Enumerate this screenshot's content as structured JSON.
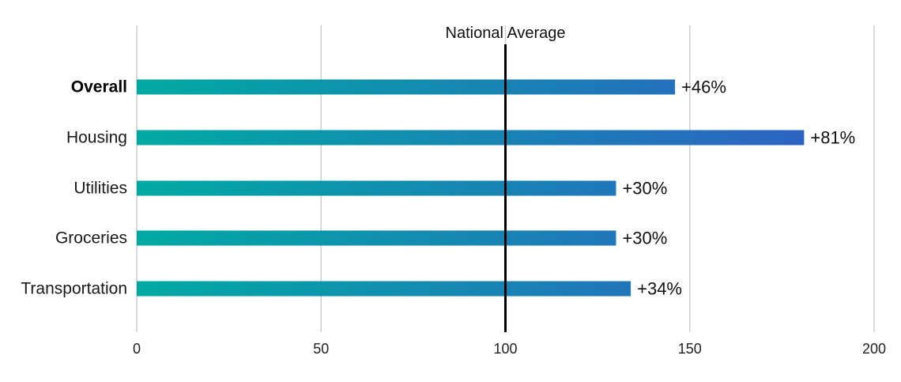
{
  "chart_data": {
    "type": "bar",
    "orientation": "horizontal",
    "categories": [
      "Overall",
      "Housing",
      "Utilities",
      "Groceries",
      "Transportation"
    ],
    "bold_categories": [
      "Overall"
    ],
    "values": [
      146,
      181,
      130,
      130,
      134
    ],
    "value_labels": [
      "+46%",
      "+81%",
      "+30%",
      "+30%",
      "+34%"
    ],
    "xlim": [
      0,
      200
    ],
    "xticks": [
      0,
      50,
      100,
      150,
      200
    ],
    "grid": true,
    "reference_line": {
      "value": 100,
      "label": "National Average",
      "color": "#000000"
    },
    "colors": {
      "gradient_start": "#00aaa3",
      "gradient_end": "#2d63c2",
      "grid": "#cfcfcf"
    }
  }
}
